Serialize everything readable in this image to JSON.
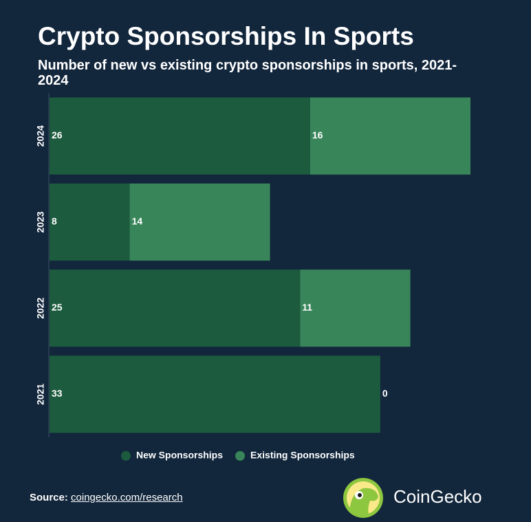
{
  "chart_data": {
    "type": "stacked-barh",
    "title": "Crypto Sponsorships In Sports",
    "subtitle": "Number of new vs existing crypto sponsorships in sports, 2021-2024",
    "categories": [
      "2024",
      "2023",
      "2022",
      "2021"
    ],
    "series": [
      {
        "name": "New Sponsorships",
        "color": "#1c5b3e",
        "values": [
          26,
          8,
          25,
          33
        ]
      },
      {
        "name": "Existing Sponsorships",
        "color": "#39855a",
        "values": [
          16,
          14,
          11,
          0
        ]
      }
    ],
    "xlim": [
      0,
      42
    ],
    "legend": "bottom"
  },
  "footer": {
    "source_label": "Source:",
    "source_link": "coingecko.com/research",
    "brand": "CoinGecko"
  }
}
